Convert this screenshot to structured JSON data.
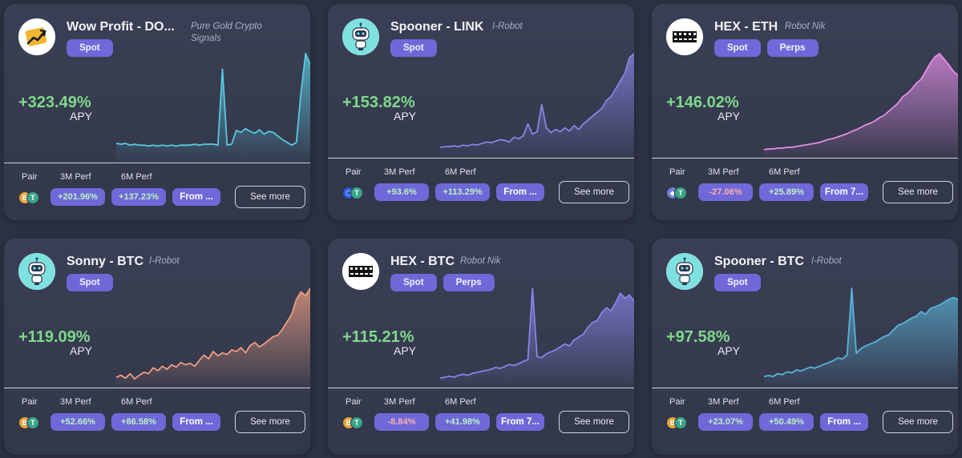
{
  "colors": {
    "accent": "#6f68d8",
    "positive": "#7fd98a",
    "negative": "#ffb0b0"
  },
  "labels": {
    "pair": "Pair",
    "perf_3m": "3M Perf",
    "perf_6m": "6M Perf",
    "apy": "APY",
    "see_more": "See more"
  },
  "cards": [
    {
      "title": "Wow Profit - DO...",
      "author": "Pure Gold Crypto Signals",
      "author_lines": [
        "Pure Gold Crypto",
        "Signals"
      ],
      "tags": [
        "Spot"
      ],
      "avatar": "wow-profit-logo",
      "apy": "+323.49%",
      "perf_3m": "+201.96%",
      "perf_6m": "+137.23%",
      "from": "From ...",
      "pair_coins": [
        "btc",
        "usdt"
      ],
      "chart_color": "#59c9e0",
      "chart_data": {
        "type": "area",
        "series": [
          {
            "values": [
              14,
              13,
              14,
              12,
              13,
              12,
              12,
              11,
              12,
              11,
              12,
              11,
              12,
              11,
              12,
              12,
              12,
              13,
              12,
              13,
              13,
              13,
              12,
              95,
              12,
              13,
              28,
              26,
              30,
              27,
              25,
              29,
              24,
              27,
              26,
              22,
              18,
              15,
              12,
              15,
              70,
              112,
              100
            ]
          }
        ]
      }
    },
    {
      "title": "Spooner - LINK",
      "author": "I-Robot",
      "tags": [
        "Spot"
      ],
      "avatar": "robot-avatar",
      "apy": "+153.82%",
      "perf_3m": "+93.6%",
      "perf_6m": "+113.29%",
      "from": "From ...",
      "pair_coins": [
        "link",
        "usdt"
      ],
      "chart_color": "#8b82e6",
      "chart_data": {
        "type": "area",
        "series": [
          {
            "values": [
              5,
              6,
              6,
              7,
              6,
              8,
              7,
              9,
              8,
              10,
              12,
              11,
              13,
              15,
              14,
              12,
              18,
              16,
              20,
              35,
              22,
              25,
              60,
              30,
              24,
              28,
              25,
              30,
              26,
              33,
              28,
              35,
              40,
              45,
              50,
              55,
              65,
              70,
              80,
              90,
              100,
              120,
              125
            ]
          }
        ]
      }
    },
    {
      "title": "HEX - ETH",
      "author": "Robot Nik",
      "tags": [
        "Spot",
        "Perps"
      ],
      "avatar": "block-trading-logo",
      "apy": "+146.02%",
      "perf_3m": "-27.06%",
      "perf_6m": "+25.89%",
      "from": "From 7...",
      "pair_coins": [
        "eth",
        "usdt"
      ],
      "chart_color": "#e58ee6",
      "chart_data": {
        "type": "area",
        "series": [
          {
            "values": [
              2,
              3,
              3,
              4,
              4,
              5,
              5,
              6,
              7,
              8,
              9,
              10,
              11,
              13,
              15,
              16,
              18,
              20,
              22,
              25,
              27,
              30,
              33,
              35,
              38,
              42,
              45,
              50,
              55,
              60,
              68,
              72,
              78,
              85,
              90,
              100,
              110,
              118,
              122,
              115,
              108,
              100,
              95
            ]
          }
        ]
      }
    },
    {
      "title": "Sonny - BTC",
      "author": "I-Robot",
      "tags": [
        "Spot"
      ],
      "avatar": "robot-avatar",
      "apy": "+119.09%",
      "perf_3m": "+52.66%",
      "perf_6m": "+86.58%",
      "from": "From ...",
      "pair_coins": [
        "btc",
        "usdt"
      ],
      "chart_color": "#ee9d80",
      "chart_data": {
        "type": "area",
        "series": [
          {
            "values": [
              5,
              8,
              4,
              10,
              3,
              8,
              12,
              10,
              18,
              14,
              20,
              16,
              22,
              19,
              25,
              22,
              24,
              20,
              28,
              35,
              30,
              40,
              34,
              38,
              36,
              42,
              40,
              45,
              38,
              48,
              52,
              46,
              50,
              55,
              60,
              62,
              70,
              80,
              90,
              110,
              120,
              115,
              125
            ]
          }
        ]
      }
    },
    {
      "title": "HEX - BTC",
      "author": "Robot Nik",
      "tags": [
        "Spot",
        "Perps"
      ],
      "avatar": "block-trading-logo",
      "apy": "+115.21%",
      "perf_3m": "-8.84%",
      "perf_6m": "+41.98%",
      "from": "From 7...",
      "pair_coins": [
        "btc",
        "usdt"
      ],
      "chart_color": "#8b82e6",
      "chart_data": {
        "type": "area",
        "series": [
          {
            "values": [
              3,
              4,
              5,
              4,
              6,
              7,
              6,
              8,
              9,
              10,
              11,
              12,
              14,
              13,
              15,
              17,
              16,
              18,
              20,
              22,
              95,
              25,
              24,
              28,
              30,
              32,
              35,
              38,
              36,
              42,
              45,
              48,
              55,
              60,
              62,
              70,
              75,
              72,
              80,
              90,
              85,
              88,
              82
            ]
          }
        ]
      }
    },
    {
      "title": "Spooner - BTC",
      "author": "I-Robot",
      "tags": [
        "Spot"
      ],
      "avatar": "robot-avatar",
      "apy": "+97.58%",
      "perf_3m": "+23.07%",
      "perf_6m": "+50.49%",
      "from": "From ...",
      "pair_coins": [
        "btc",
        "usdt"
      ],
      "chart_color": "#59b4d8",
      "chart_data": {
        "type": "area",
        "series": [
          {
            "values": [
              5,
              6,
              5,
              8,
              7,
              10,
              9,
              12,
              11,
              13,
              15,
              14,
              16,
              18,
              20,
              22,
              25,
              24,
              28,
              100,
              30,
              35,
              38,
              40,
              42,
              45,
              48,
              50,
              55,
              60,
              62,
              65,
              68,
              70,
              75,
              72,
              78,
              80,
              82,
              85,
              88,
              90,
              88
            ]
          }
        ]
      }
    }
  ]
}
